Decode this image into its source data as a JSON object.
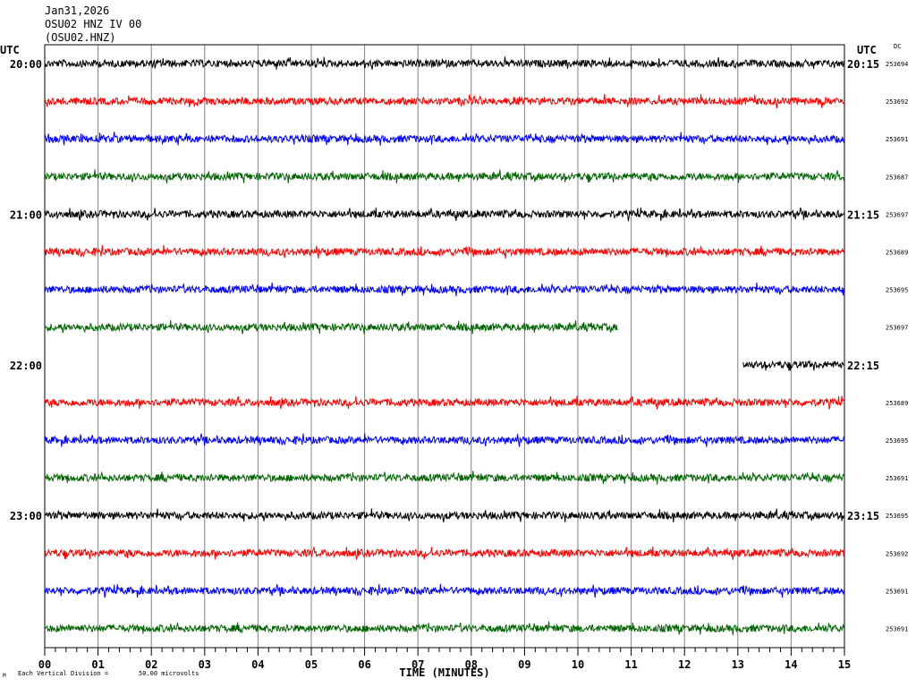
{
  "header": {
    "date": "Jan31,2026",
    "station": "OSU02 HNZ IV 00",
    "channel": "(OSU02.HNZ)"
  },
  "utc_left": "UTC",
  "utc_right": "UTC",
  "dc_label": "DC",
  "footer": {
    "scale_note": "Each Vertical Division =",
    "scale_value": "50.00 microvolts",
    "corner_mark": "M"
  },
  "colors": {
    "trace_cycle": [
      "#000000",
      "#ff0000",
      "#0000ff",
      "#006400"
    ],
    "grid": "#808080",
    "frame": "#000000"
  },
  "chart_data": {
    "type": "line",
    "title": "",
    "xlabel": "TIME (MINUTES)",
    "ylabel": "",
    "xlim": [
      0,
      15
    ],
    "x_ticks": [
      "00",
      "01",
      "02",
      "03",
      "04",
      "05",
      "06",
      "07",
      "08",
      "09",
      "10",
      "11",
      "12",
      "13",
      "14",
      "15"
    ],
    "minor_ticks_per_minute": 5,
    "grid": true,
    "rows": [
      {
        "left_label": "20:00",
        "right_label": "20:15",
        "dc": "253694",
        "start_min": 0,
        "end_min": 15
      },
      {
        "left_label": "",
        "right_label": "",
        "dc": "253692",
        "start_min": 0,
        "end_min": 15
      },
      {
        "left_label": "",
        "right_label": "",
        "dc": "253691",
        "start_min": 0,
        "end_min": 15
      },
      {
        "left_label": "",
        "right_label": "",
        "dc": "253687",
        "start_min": 0,
        "end_min": 15
      },
      {
        "left_label": "21:00",
        "right_label": "21:15",
        "dc": "253697",
        "start_min": 0,
        "end_min": 15
      },
      {
        "left_label": "",
        "right_label": "",
        "dc": "253689",
        "start_min": 0,
        "end_min": 15
      },
      {
        "left_label": "",
        "right_label": "",
        "dc": "253695",
        "start_min": 0,
        "end_min": 15
      },
      {
        "left_label": "",
        "right_label": "",
        "dc": "253697",
        "start_min": 0,
        "end_min": 10.75
      },
      {
        "left_label": "22:00",
        "right_label": "22:15",
        "dc": "",
        "start_min": 13.1,
        "end_min": 15
      },
      {
        "left_label": "",
        "right_label": "",
        "dc": "253689",
        "start_min": 0,
        "end_min": 15
      },
      {
        "left_label": "",
        "right_label": "",
        "dc": "253695",
        "start_min": 0,
        "end_min": 15
      },
      {
        "left_label": "",
        "right_label": "",
        "dc": "253691",
        "start_min": 0,
        "end_min": 15
      },
      {
        "left_label": "23:00",
        "right_label": "23:15",
        "dc": "253695",
        "start_min": 0,
        "end_min": 15
      },
      {
        "left_label": "",
        "right_label": "",
        "dc": "253692",
        "start_min": 0,
        "end_min": 15
      },
      {
        "left_label": "",
        "right_label": "",
        "dc": "253691",
        "start_min": 0,
        "end_min": 15
      },
      {
        "left_label": "",
        "right_label": "",
        "dc": "253691",
        "start_min": 0,
        "end_min": 15
      }
    ]
  }
}
